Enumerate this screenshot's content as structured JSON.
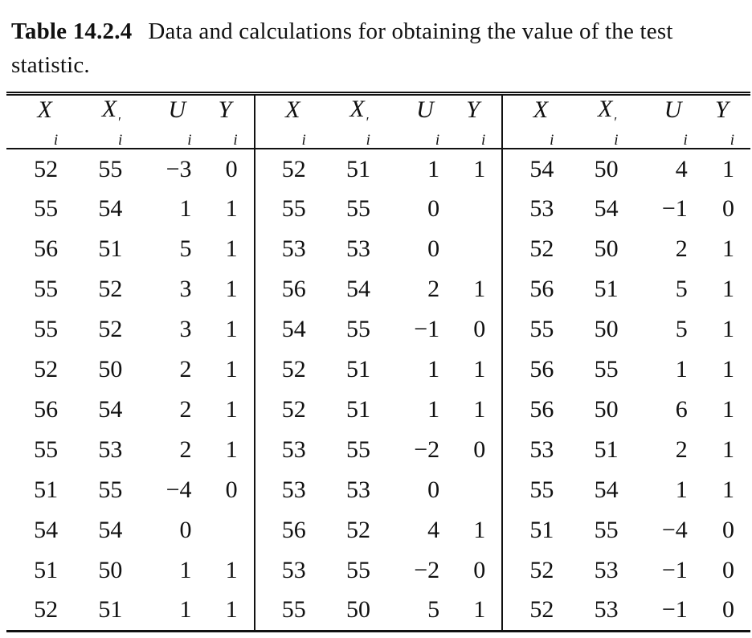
{
  "title": {
    "label": "Table 14.2.4",
    "caption": "Data and calculations for obtaining the value of the test statistic."
  },
  "table": {
    "headers": [
      {
        "base": "X",
        "prime": "",
        "sub": "i"
      },
      {
        "base": "X",
        "prime": "′",
        "sub": "i"
      },
      {
        "base": "U",
        "prime": "",
        "sub": "i"
      },
      {
        "base": "Y",
        "prime": "",
        "sub": "i"
      }
    ],
    "rows": [
      [
        "52",
        "55",
        "−3",
        "0",
        "52",
        "51",
        "1",
        "1",
        "54",
        "50",
        "4",
        "1"
      ],
      [
        "55",
        "54",
        "1",
        "1",
        "55",
        "55",
        "0",
        "",
        "53",
        "54",
        "−1",
        "0"
      ],
      [
        "56",
        "51",
        "5",
        "1",
        "53",
        "53",
        "0",
        "",
        "52",
        "50",
        "2",
        "1"
      ],
      [
        "55",
        "52",
        "3",
        "1",
        "56",
        "54",
        "2",
        "1",
        "56",
        "51",
        "5",
        "1"
      ],
      [
        "55",
        "52",
        "3",
        "1",
        "54",
        "55",
        "−1",
        "0",
        "55",
        "50",
        "5",
        "1"
      ],
      [
        "52",
        "50",
        "2",
        "1",
        "52",
        "51",
        "1",
        "1",
        "56",
        "55",
        "1",
        "1"
      ],
      [
        "56",
        "54",
        "2",
        "1",
        "52",
        "51",
        "1",
        "1",
        "56",
        "50",
        "6",
        "1"
      ],
      [
        "55",
        "53",
        "2",
        "1",
        "53",
        "55",
        "−2",
        "0",
        "53",
        "51",
        "2",
        "1"
      ],
      [
        "51",
        "55",
        "−4",
        "0",
        "53",
        "53",
        "0",
        "",
        "55",
        "54",
        "1",
        "1"
      ],
      [
        "54",
        "54",
        "0",
        "",
        "56",
        "52",
        "4",
        "1",
        "51",
        "55",
        "−4",
        "0"
      ],
      [
        "51",
        "50",
        "1",
        "1",
        "53",
        "55",
        "−2",
        "0",
        "52",
        "53",
        "−1",
        "0"
      ],
      [
        "52",
        "51",
        "1",
        "1",
        "55",
        "50",
        "5",
        "1",
        "52",
        "53",
        "−1",
        "0"
      ]
    ]
  }
}
